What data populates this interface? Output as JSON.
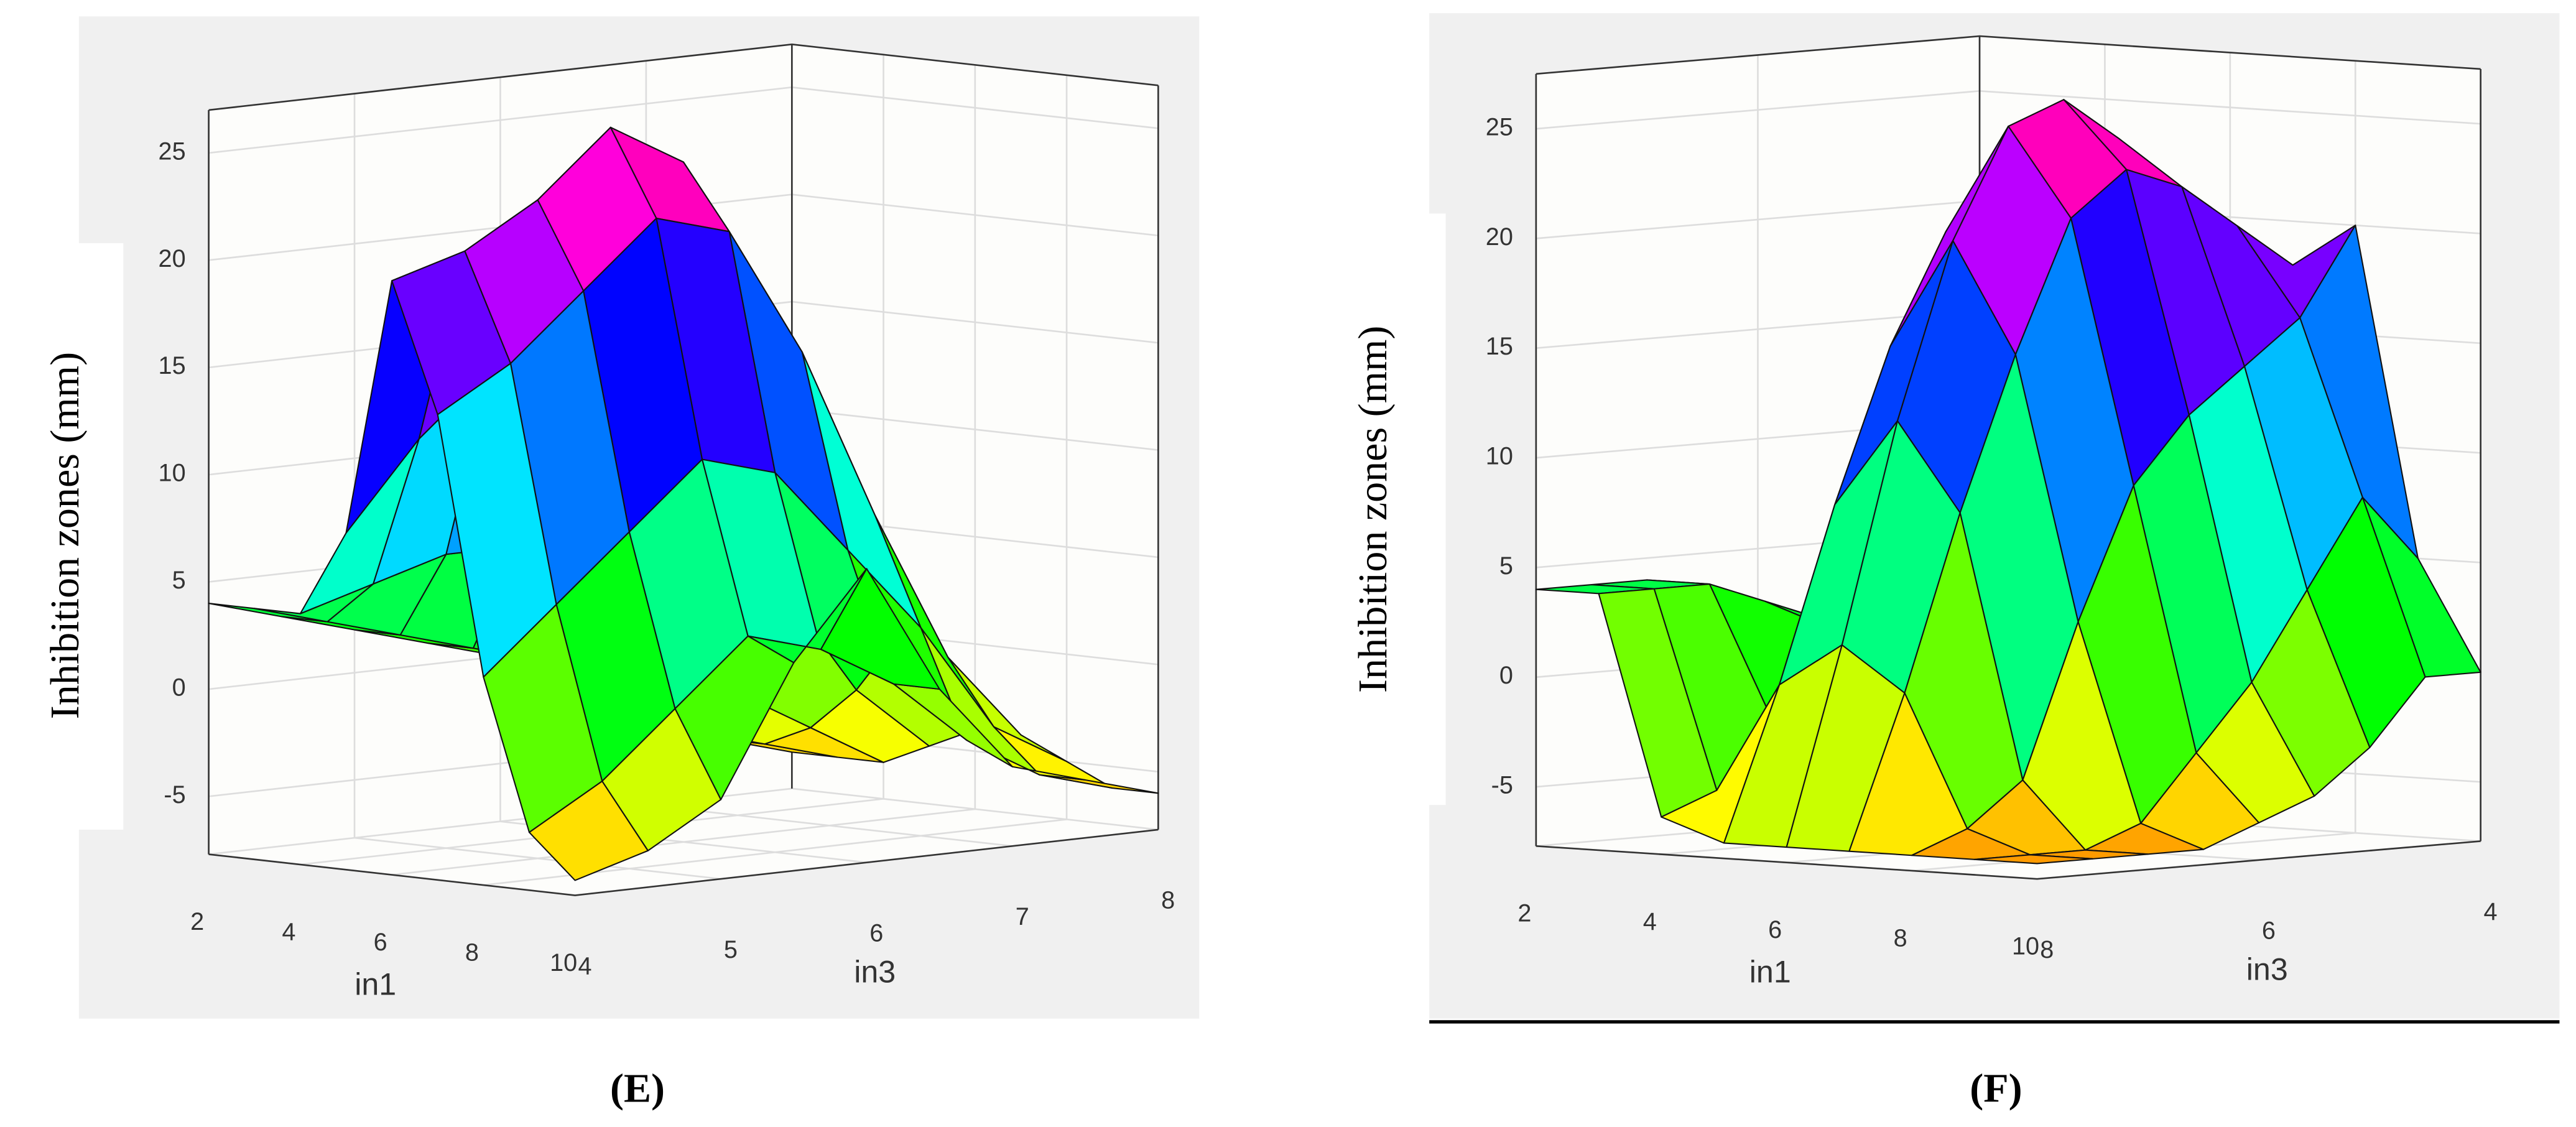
{
  "chart_data": [
    {
      "type": "surface",
      "zlabel": "Inhibition zones (mm)",
      "xlabel": "in1",
      "ylabel": "in3",
      "panel_label": "(E)",
      "colormap": "hsv",
      "x": [
        2,
        3,
        4,
        5,
        6,
        7,
        8,
        9,
        10
      ],
      "y": [
        4,
        4.5,
        5,
        5.5,
        6,
        6.5,
        7,
        7.5,
        8
      ],
      "z": [
        [
          4,
          4,
          4,
          8,
          20,
          14,
          2,
          -5,
          -7
        ],
        [
          3,
          3,
          5,
          12,
          21,
          16,
          5,
          -3,
          -6
        ],
        [
          2,
          2,
          6,
          15,
          23,
          19,
          8,
          0,
          -4
        ],
        [
          1,
          1,
          6,
          17,
          26,
          22,
          11,
          3,
          2
        ],
        [
          0,
          0,
          5,
          15,
          24,
          21,
          10,
          2,
          6
        ],
        [
          -2,
          -2,
          2,
          10,
          17,
          15,
          6,
          0,
          0
        ],
        [
          -4,
          -4,
          -2,
          3,
          8,
          7,
          2,
          -3,
          -4
        ],
        [
          -5,
          -5,
          -4,
          -2,
          1,
          0,
          -3,
          -5,
          -5
        ],
        [
          -6,
          -6,
          -6,
          -5,
          -4,
          -4,
          -5,
          -6,
          -6
        ]
      ],
      "xlim": [
        2,
        10
      ],
      "ylim": [
        4,
        8
      ],
      "zlim": [
        -7.7,
        27
      ],
      "xticks": [
        2,
        4,
        6,
        8,
        10
      ],
      "yticks": [
        4,
        5,
        6,
        7,
        8
      ],
      "zticks": [
        -5,
        0,
        5,
        10,
        15,
        20,
        25
      ]
    },
    {
      "type": "surface",
      "zlabel": "Inhibition zones (mm)",
      "xlabel": "in1",
      "ylabel": "in3",
      "panel_label": "(F)",
      "colormap": "hsv",
      "x": [
        2,
        3,
        4,
        5,
        6,
        7,
        8,
        9,
        10
      ],
      "y": [
        8,
        7.5,
        7,
        6.5,
        6,
        5.5,
        5,
        4.5,
        4
      ],
      "z": [
        [
          4,
          4,
          -6,
          -7,
          -7,
          -7,
          -7,
          -7,
          -7
        ],
        [
          4,
          4,
          -5,
          0,
          2,
          0,
          -6,
          -7,
          -7
        ],
        [
          4,
          4,
          -2,
          8,
          12,
          8,
          -4,
          -7,
          -7
        ],
        [
          3,
          3,
          2,
          15,
          20,
          15,
          3,
          -6,
          -7
        ],
        [
          2,
          2,
          5,
          20,
          25,
          21,
          9,
          -3,
          -6
        ],
        [
          1,
          1,
          6,
          22,
          26,
          23,
          12,
          0,
          -5
        ],
        [
          0,
          0,
          6,
          20,
          24,
          22,
          14,
          4,
          -3
        ],
        [
          -1,
          -1,
          4,
          15,
          20,
          20,
          16,
          8,
          0
        ],
        [
          -2,
          -2,
          0,
          8,
          14,
          18,
          20,
          5,
          0
        ]
      ],
      "xlim": [
        2,
        10
      ],
      "ylim": [
        8,
        4
      ],
      "zlim": [
        -7.7,
        27.5
      ],
      "xticks": [
        2,
        4,
        6,
        8,
        10
      ],
      "yticks": [
        8,
        6,
        4
      ],
      "zticks": [
        -5,
        0,
        5,
        10,
        15,
        20,
        25
      ]
    }
  ]
}
